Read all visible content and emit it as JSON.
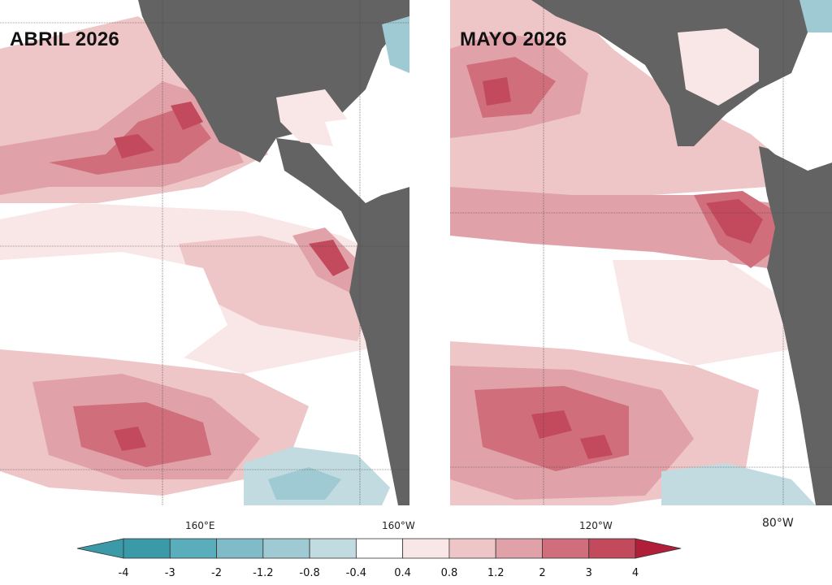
{
  "panels": [
    {
      "title": "ABRIL 2026"
    },
    {
      "title": "MAYO 2026"
    }
  ],
  "longitude_labels": [
    "160°E",
    "160°W",
    "120°W",
    "80°W"
  ],
  "colorbar": {
    "ticks": [
      "-4",
      "-3",
      "-2",
      "-1.2",
      "-0.8",
      "-0.4",
      "0.4",
      "0.8",
      "1.2",
      "2",
      "3",
      "4"
    ],
    "colors": [
      "#3b9aa8",
      "#5aaebb",
      "#7fbcc8",
      "#9fcad3",
      "#c1dbe0",
      "#ffffff",
      "#f9e6e6",
      "#efc6c8",
      "#e0a2a8",
      "#d06e7c",
      "#c24a5c",
      "#b01e3a"
    ]
  }
}
